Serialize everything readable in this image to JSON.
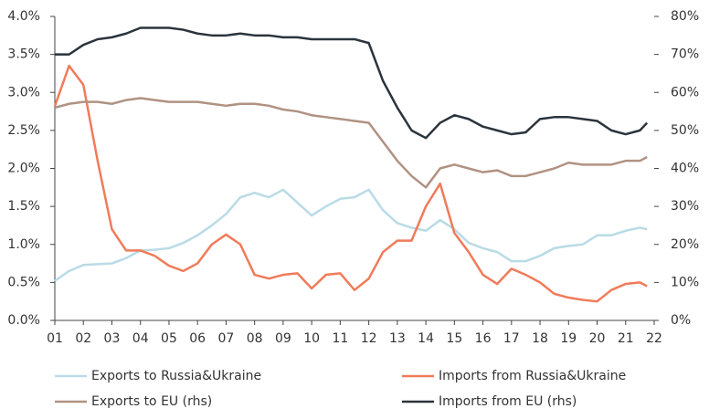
{
  "chart_data": {
    "type": "line",
    "x": [
      1,
      1.5,
      2,
      2.5,
      3,
      3.5,
      4,
      4.5,
      5,
      5.5,
      6,
      6.5,
      7,
      7.5,
      8,
      8.5,
      9,
      9.5,
      10,
      10.5,
      11,
      11.5,
      12,
      12.5,
      13,
      13.5,
      14,
      14.5,
      15,
      15.5,
      16,
      16.5,
      17,
      17.5,
      18,
      18.5,
      19,
      19.5,
      20,
      20.5,
      21,
      21.5,
      21.75
    ],
    "xlim": [
      1,
      22
    ],
    "xticks": [
      {
        "value": 1,
        "label": "01"
      },
      {
        "value": 2,
        "label": "02"
      },
      {
        "value": 3,
        "label": "03"
      },
      {
        "value": 4,
        "label": "04"
      },
      {
        "value": 5,
        "label": "05"
      },
      {
        "value": 6,
        "label": "06"
      },
      {
        "value": 7,
        "label": "07"
      },
      {
        "value": 8,
        "label": "08"
      },
      {
        "value": 9,
        "label": "09"
      },
      {
        "value": 10,
        "label": "10"
      },
      {
        "value": 11,
        "label": "11"
      },
      {
        "value": 12,
        "label": "12"
      },
      {
        "value": 13,
        "label": "13"
      },
      {
        "value": 14,
        "label": "14"
      },
      {
        "value": 15,
        "label": "15"
      },
      {
        "value": 16,
        "label": "16"
      },
      {
        "value": 17,
        "label": "17"
      },
      {
        "value": 18,
        "label": "18"
      },
      {
        "value": 19,
        "label": "19"
      },
      {
        "value": 20,
        "label": "20"
      },
      {
        "value": 21,
        "label": "21"
      },
      {
        "value": 22,
        "label": "22"
      }
    ],
    "ylim": [
      0,
      4
    ],
    "yticks": [
      {
        "value": 0,
        "label": "0.0%"
      },
      {
        "value": 0.5,
        "label": "0.5%"
      },
      {
        "value": 1,
        "label": "1.0%"
      },
      {
        "value": 1.5,
        "label": "1.5%"
      },
      {
        "value": 2,
        "label": "2.0%"
      },
      {
        "value": 2.5,
        "label": "2.5%"
      },
      {
        "value": 3,
        "label": "3.0%"
      },
      {
        "value": 3.5,
        "label": "3.5%"
      },
      {
        "value": 4,
        "label": "4.0%"
      }
    ],
    "y2lim": [
      0,
      80
    ],
    "y2ticks": [
      {
        "value": 0,
        "label": "0%"
      },
      {
        "value": 10,
        "label": "10%"
      },
      {
        "value": 20,
        "label": "20%"
      },
      {
        "value": 30,
        "label": "30%"
      },
      {
        "value": 40,
        "label": "40%"
      },
      {
        "value": 50,
        "label": "50%"
      },
      {
        "value": 60,
        "label": "60%"
      },
      {
        "value": 70,
        "label": "70%"
      },
      {
        "value": 80,
        "label": "80%"
      }
    ],
    "series": [
      {
        "name": "Exports to Russia&Ukraine",
        "color": "#b9dbe6",
        "values": [
          0.52,
          0.65,
          0.73,
          0.74,
          0.75,
          0.82,
          0.92,
          0.93,
          0.95,
          1.02,
          1.12,
          1.25,
          1.4,
          1.62,
          1.68,
          1.62,
          1.72,
          1.55,
          1.38,
          1.5,
          1.6,
          1.62,
          1.72,
          1.45,
          1.28,
          1.22,
          1.18,
          1.32,
          1.2,
          1.02,
          0.95,
          0.9,
          0.78,
          0.78,
          0.85,
          0.95,
          0.98,
          1.0,
          1.12,
          1.12,
          1.18,
          1.22,
          1.2
        ]
      },
      {
        "name": "Imports from Russia&Ukraine",
        "color": "#f07b5a",
        "values": [
          2.82,
          3.35,
          3.1,
          2.1,
          1.2,
          0.92,
          0.92,
          0.85,
          0.72,
          0.65,
          0.75,
          1.0,
          1.13,
          1.0,
          0.6,
          0.55,
          0.6,
          0.62,
          0.42,
          0.6,
          0.62,
          0.4,
          0.55,
          0.9,
          1.05,
          1.05,
          1.5,
          1.8,
          1.15,
          0.9,
          0.6,
          0.48,
          0.68,
          0.6,
          0.5,
          0.35,
          0.3,
          0.27,
          0.25,
          0.4,
          0.48,
          0.5,
          0.45
        ]
      },
      {
        "name": "Exports to EU (rhs)",
        "color": "#b09282",
        "axis": "y2",
        "values": [
          56,
          57,
          57.5,
          57.5,
          57,
          58,
          58.5,
          58,
          57.5,
          57.5,
          57.5,
          57,
          56.5,
          57,
          57,
          56.5,
          55.5,
          55,
          54,
          53.5,
          53,
          52.5,
          52,
          47,
          42,
          38,
          35,
          40,
          41,
          40,
          39,
          39.5,
          38,
          38,
          39,
          40,
          41.5,
          41,
          41,
          41,
          42,
          42,
          43
        ]
      },
      {
        "name": "Imports from EU (rhs)",
        "color": "#2b343c",
        "axis": "y2",
        "values": [
          70,
          70,
          72.5,
          74,
          74.5,
          75.5,
          77,
          77,
          77,
          76.5,
          75.5,
          75,
          75,
          75.5,
          75,
          75,
          74.5,
          74.5,
          74,
          74,
          74,
          74,
          73,
          63,
          56,
          50,
          48,
          52,
          54,
          53,
          51,
          50,
          49,
          49.5,
          53,
          53.5,
          53.5,
          53,
          52.5,
          50,
          49,
          50,
          52
        ]
      }
    ]
  }
}
